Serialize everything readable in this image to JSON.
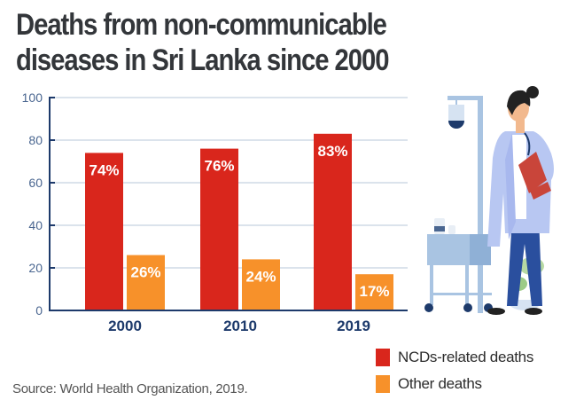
{
  "chart_data": {
    "type": "bar",
    "title": "Deaths from non-communicable diseases in Sri Lanka since 2000",
    "categories": [
      "2000",
      "2010",
      "2019"
    ],
    "series": [
      {
        "name": "NCDs-related deaths",
        "color": "#d9261c",
        "values": [
          74,
          76,
          83
        ],
        "labels": [
          "74%",
          "76%",
          "83%"
        ]
      },
      {
        "name": "Other deaths",
        "color": "#f7912a",
        "values": [
          26,
          24,
          17
        ],
        "labels": [
          "26%",
          "24%",
          "17%"
        ]
      }
    ],
    "yticks": [
      "0",
      "20",
      "40",
      "60",
      "80",
      "100"
    ],
    "ylim": [
      0,
      100
    ],
    "xlabel": "",
    "ylabel": "",
    "grid": true,
    "legend_position": "bottom-right",
    "source": "Source: World Health Organization, 2019."
  },
  "colors": {
    "axis": "#1d3a6b",
    "grid": "#dbe3ec"
  }
}
